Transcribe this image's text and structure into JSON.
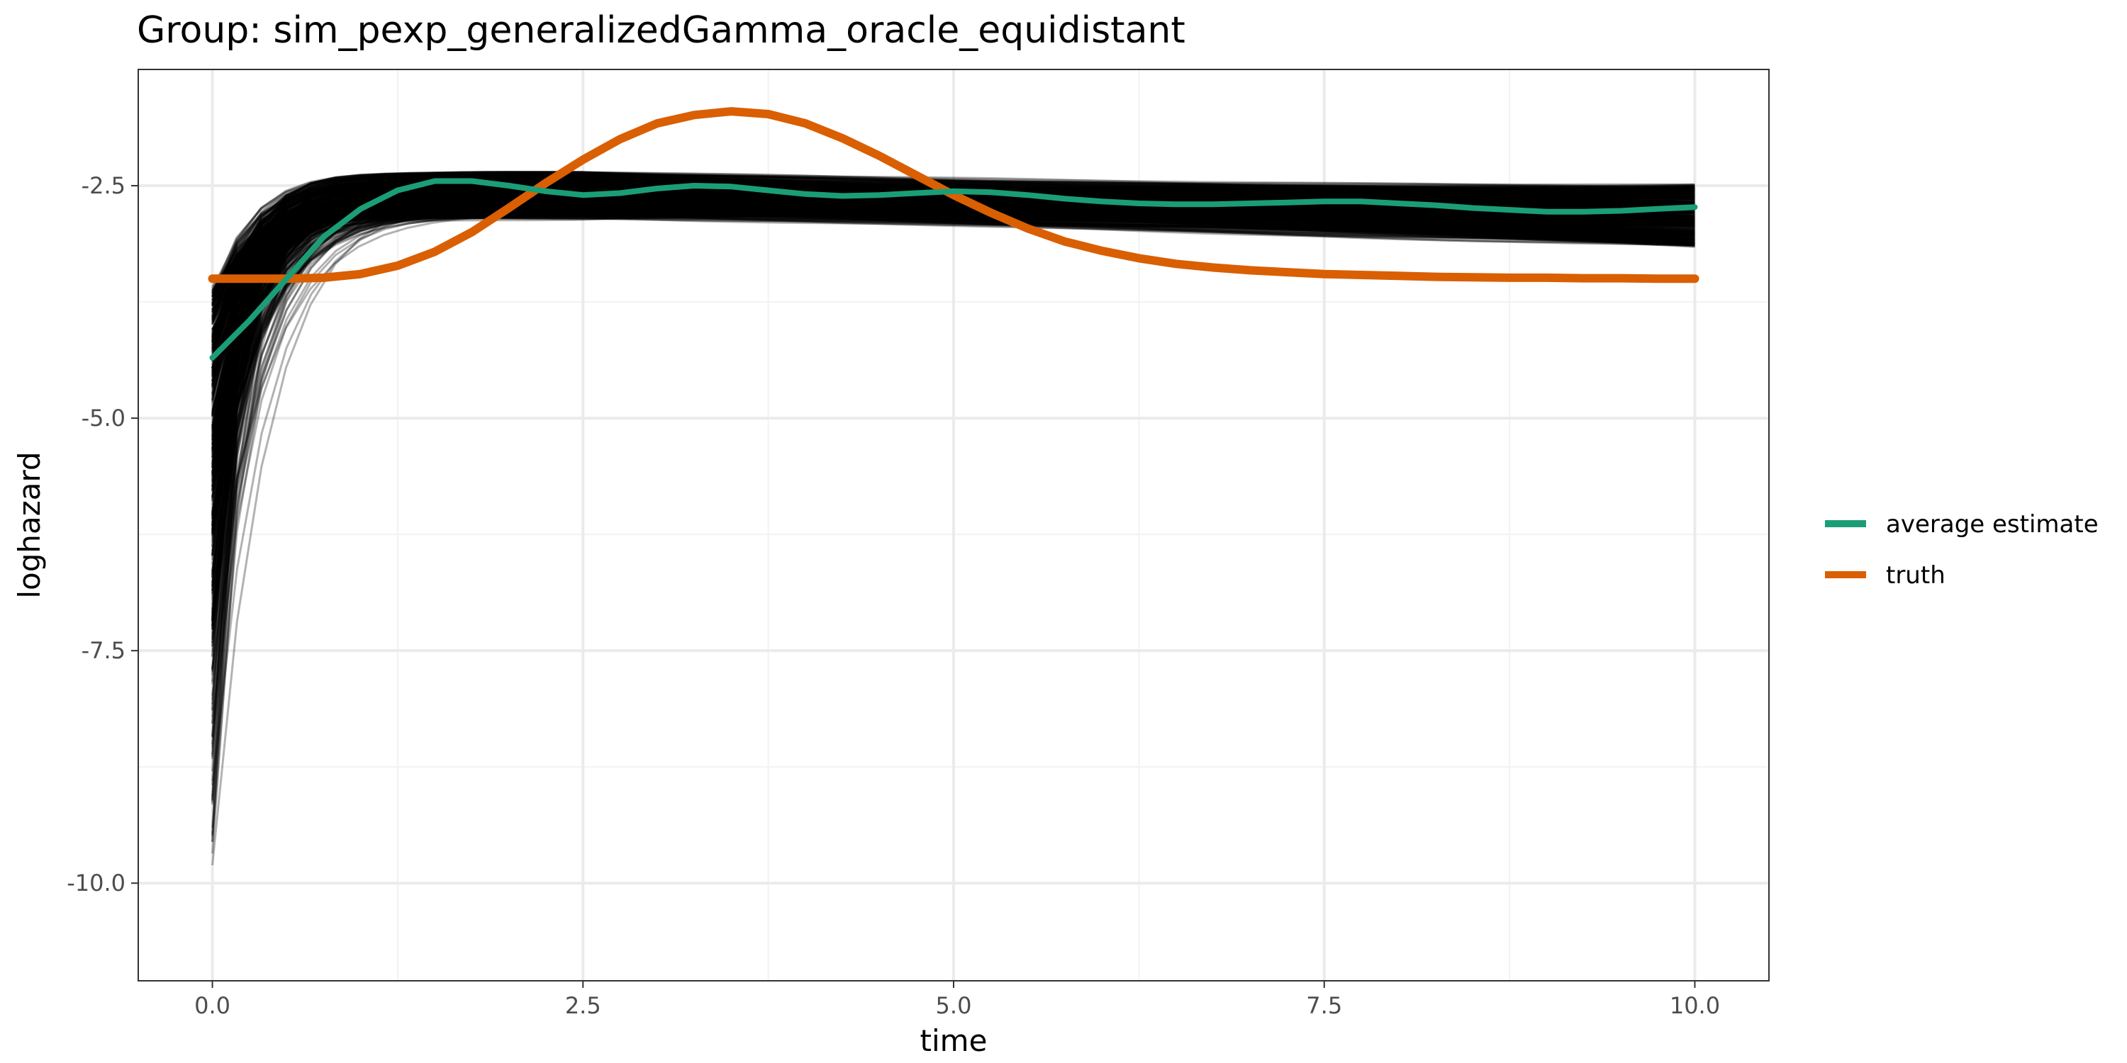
{
  "chart_data": {
    "type": "line",
    "title": "Group: sim_pexp_generalizedGamma_oracle_equidistant",
    "xlabel": "time",
    "ylabel": "loghazard",
    "xlim": [
      -0.5,
      10.5
    ],
    "ylim": [
      -11.05,
      -1.25
    ],
    "x_ticks": [
      0,
      2.5,
      5,
      7.5,
      10
    ],
    "x_tick_labels": [
      "0.0",
      "2.5",
      "5.0",
      "7.5",
      "10.0"
    ],
    "y_ticks": [
      -2.5,
      -5,
      -7.5,
      -10
    ],
    "y_tick_labels": [
      "-2.5",
      "-5.0",
      "-7.5",
      "-10.0"
    ],
    "grid": true,
    "legend_position": "right",
    "series": [
      {
        "name": "average estimate",
        "color": "#1b9e77",
        "x": [
          0,
          0.25,
          0.5,
          0.75,
          1.0,
          1.25,
          1.5,
          1.75,
          2.0,
          2.25,
          2.5,
          2.75,
          3.0,
          3.25,
          3.5,
          3.75,
          4.0,
          4.25,
          4.5,
          4.75,
          5.0,
          5.25,
          5.5,
          5.75,
          6.0,
          6.25,
          6.5,
          6.75,
          7.0,
          7.25,
          7.5,
          7.75,
          8.0,
          8.25,
          8.5,
          8.75,
          9.0,
          9.25,
          9.5,
          9.75,
          10.0
        ],
        "y": [
          -4.35,
          -3.95,
          -3.5,
          -3.05,
          -2.75,
          -2.55,
          -2.45,
          -2.45,
          -2.5,
          -2.56,
          -2.6,
          -2.58,
          -2.53,
          -2.5,
          -2.51,
          -2.55,
          -2.59,
          -2.61,
          -2.6,
          -2.58,
          -2.56,
          -2.57,
          -2.6,
          -2.64,
          -2.67,
          -2.69,
          -2.7,
          -2.7,
          -2.69,
          -2.68,
          -2.67,
          -2.67,
          -2.69,
          -2.71,
          -2.74,
          -2.76,
          -2.78,
          -2.78,
          -2.77,
          -2.75,
          -2.73
        ]
      },
      {
        "name": "truth",
        "color": "#d95f02",
        "x": [
          0,
          0.25,
          0.5,
          0.75,
          1.0,
          1.25,
          1.5,
          1.75,
          2.0,
          2.25,
          2.5,
          2.75,
          3.0,
          3.25,
          3.5,
          3.75,
          4.0,
          4.25,
          4.5,
          4.75,
          5.0,
          5.25,
          5.5,
          5.75,
          6.0,
          6.25,
          6.5,
          6.75,
          7.0,
          7.25,
          7.5,
          7.75,
          8.0,
          8.25,
          8.5,
          8.75,
          9.0,
          9.25,
          9.5,
          9.75,
          10.0
        ],
        "y": [
          -3.5,
          -3.5,
          -3.5,
          -3.49,
          -3.45,
          -3.36,
          -3.21,
          -3.0,
          -2.74,
          -2.47,
          -2.22,
          -2.0,
          -1.83,
          -1.74,
          -1.7,
          -1.73,
          -1.83,
          -1.99,
          -2.18,
          -2.39,
          -2.6,
          -2.79,
          -2.96,
          -3.1,
          -3.2,
          -3.28,
          -3.34,
          -3.38,
          -3.41,
          -3.43,
          -3.45,
          -3.46,
          -3.47,
          -3.48,
          -3.485,
          -3.49,
          -3.49,
          -3.495,
          -3.495,
          -3.5,
          -3.5
        ]
      }
    ],
    "simulation_runs": {
      "description_color": "#000000",
      "count": 500,
      "start_y_range": [
        -10.6,
        -3.6
      ],
      "late_y_range": [
        -2.35,
        -2.85
      ],
      "end_y_range": [
        -2.5,
        -3.15
      ],
      "x_end": 10.0
    }
  },
  "legend": {
    "items": [
      {
        "label": "average estimate",
        "color": "#1b9e77"
      },
      {
        "label": "truth",
        "color": "#d95f02"
      }
    ]
  }
}
